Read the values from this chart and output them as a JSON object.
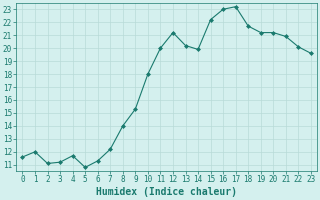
{
  "x": [
    0,
    1,
    2,
    3,
    4,
    5,
    6,
    7,
    8,
    9,
    10,
    11,
    12,
    13,
    14,
    15,
    16,
    17,
    18,
    19,
    20,
    21,
    22,
    23
  ],
  "y": [
    11.6,
    12.0,
    11.1,
    11.2,
    11.7,
    10.8,
    11.3,
    12.2,
    14.0,
    15.3,
    18.0,
    20.0,
    21.2,
    20.2,
    19.9,
    22.2,
    23.0,
    23.2,
    21.7,
    21.2,
    21.2,
    20.9,
    20.1,
    19.6
  ],
  "line_color": "#1a7a6e",
  "marker": "D",
  "marker_size": 2,
  "bg_color": "#d4f0ee",
  "grid_color": "#b8dbd8",
  "xlabel": "Humidex (Indice chaleur)",
  "ylabel": "",
  "xlim": [
    -0.5,
    23.5
  ],
  "ylim": [
    10.5,
    23.5
  ],
  "yticks": [
    11,
    12,
    13,
    14,
    15,
    16,
    17,
    18,
    19,
    20,
    21,
    22,
    23
  ],
  "xticks": [
    0,
    1,
    2,
    3,
    4,
    5,
    6,
    7,
    8,
    9,
    10,
    11,
    12,
    13,
    14,
    15,
    16,
    17,
    18,
    19,
    20,
    21,
    22,
    23
  ],
  "tick_color": "#1a7a6e",
  "label_fontsize": 5.5,
  "xlabel_fontsize": 7.0,
  "linewidth": 0.8
}
